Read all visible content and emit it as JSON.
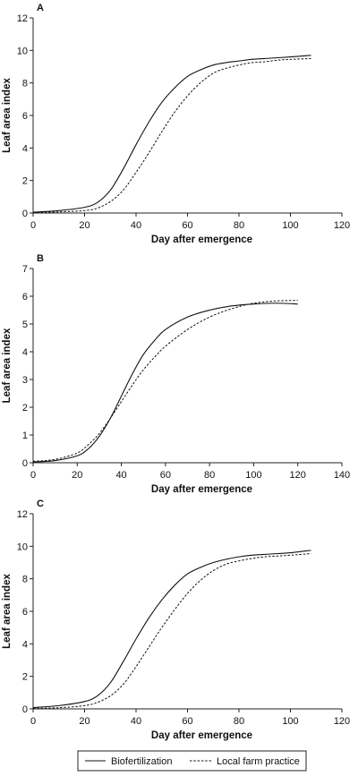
{
  "chart_data": [
    {
      "type": "line",
      "panel_label": "A",
      "xlabel": "Day after emergence",
      "ylabel": "Leaf area index",
      "xlim": [
        0,
        120
      ],
      "ylim": [
        0,
        12
      ],
      "xticks": [
        0,
        20,
        40,
        60,
        80,
        100,
        120
      ],
      "yticks": [
        0,
        2,
        4,
        6,
        8,
        10,
        12
      ],
      "series": [
        {
          "name": "Biofertilization",
          "style": "solid",
          "x": [
            0,
            10,
            20,
            25,
            30,
            35,
            40,
            45,
            50,
            55,
            60,
            65,
            70,
            75,
            80,
            85,
            90,
            95,
            100,
            108
          ],
          "y": [
            0.05,
            0.15,
            0.35,
            0.65,
            1.4,
            2.7,
            4.2,
            5.6,
            6.8,
            7.7,
            8.4,
            8.8,
            9.1,
            9.25,
            9.35,
            9.45,
            9.5,
            9.55,
            9.6,
            9.7
          ]
        },
        {
          "name": "Local farm practice",
          "style": "dashed",
          "x": [
            0,
            10,
            20,
            25,
            30,
            35,
            40,
            45,
            50,
            55,
            60,
            65,
            70,
            75,
            80,
            85,
            90,
            95,
            100,
            108
          ],
          "y": [
            0.03,
            0.07,
            0.15,
            0.3,
            0.7,
            1.4,
            2.5,
            3.7,
            5.0,
            6.2,
            7.2,
            8.0,
            8.6,
            8.9,
            9.1,
            9.25,
            9.3,
            9.4,
            9.45,
            9.5
          ]
        }
      ]
    },
    {
      "type": "line",
      "panel_label": "B",
      "xlabel": "Day after emergence",
      "ylabel": "Leaf area index",
      "xlim": [
        0,
        140
      ],
      "ylim": [
        0,
        7
      ],
      "xticks": [
        0,
        20,
        40,
        60,
        80,
        100,
        120,
        140
      ],
      "yticks": [
        0,
        1,
        2,
        3,
        4,
        5,
        6,
        7
      ],
      "series": [
        {
          "name": "Biofertilization",
          "style": "solid",
          "x": [
            0,
            10,
            20,
            25,
            30,
            35,
            40,
            45,
            50,
            55,
            60,
            70,
            80,
            90,
            100,
            110,
            120
          ],
          "y": [
            0.03,
            0.08,
            0.25,
            0.5,
            0.95,
            1.6,
            2.4,
            3.2,
            3.9,
            4.4,
            4.8,
            5.25,
            5.5,
            5.65,
            5.72,
            5.75,
            5.72
          ]
        },
        {
          "name": "Local farm practice",
          "style": "dashed",
          "x": [
            0,
            10,
            20,
            25,
            30,
            35,
            40,
            45,
            50,
            55,
            60,
            70,
            80,
            90,
            100,
            110,
            120
          ],
          "y": [
            0.05,
            0.12,
            0.35,
            0.65,
            1.05,
            1.6,
            2.2,
            2.8,
            3.35,
            3.8,
            4.2,
            4.8,
            5.25,
            5.55,
            5.75,
            5.83,
            5.85
          ]
        }
      ]
    },
    {
      "type": "line",
      "panel_label": "C",
      "xlabel": "Day after emergence",
      "ylabel": "Leaf area index",
      "xlim": [
        0,
        120
      ],
      "ylim": [
        0,
        12
      ],
      "xticks": [
        0,
        20,
        40,
        60,
        80,
        100,
        120
      ],
      "yticks": [
        0,
        2,
        4,
        6,
        8,
        10,
        12
      ],
      "series": [
        {
          "name": "Biofertilization",
          "style": "solid",
          "x": [
            0,
            10,
            20,
            25,
            30,
            35,
            40,
            45,
            50,
            55,
            60,
            65,
            70,
            75,
            80,
            85,
            90,
            95,
            100,
            108
          ],
          "y": [
            0.08,
            0.2,
            0.45,
            0.8,
            1.6,
            2.9,
            4.3,
            5.6,
            6.7,
            7.6,
            8.3,
            8.7,
            9.0,
            9.2,
            9.35,
            9.45,
            9.5,
            9.55,
            9.6,
            9.75
          ]
        },
        {
          "name": "Local farm practice",
          "style": "dashed",
          "x": [
            0,
            10,
            20,
            25,
            30,
            35,
            40,
            45,
            50,
            55,
            60,
            65,
            70,
            75,
            80,
            85,
            90,
            95,
            100,
            108
          ],
          "y": [
            0.03,
            0.07,
            0.2,
            0.4,
            0.8,
            1.5,
            2.6,
            3.8,
            5.0,
            6.1,
            7.1,
            7.9,
            8.5,
            8.9,
            9.1,
            9.25,
            9.35,
            9.4,
            9.45,
            9.55
          ]
        }
      ]
    }
  ],
  "legend": {
    "items": [
      {
        "label": "Biofertilization",
        "style": "solid"
      },
      {
        "label": "Local farm practice",
        "style": "dashed"
      }
    ],
    "placement": "bottom-center"
  }
}
